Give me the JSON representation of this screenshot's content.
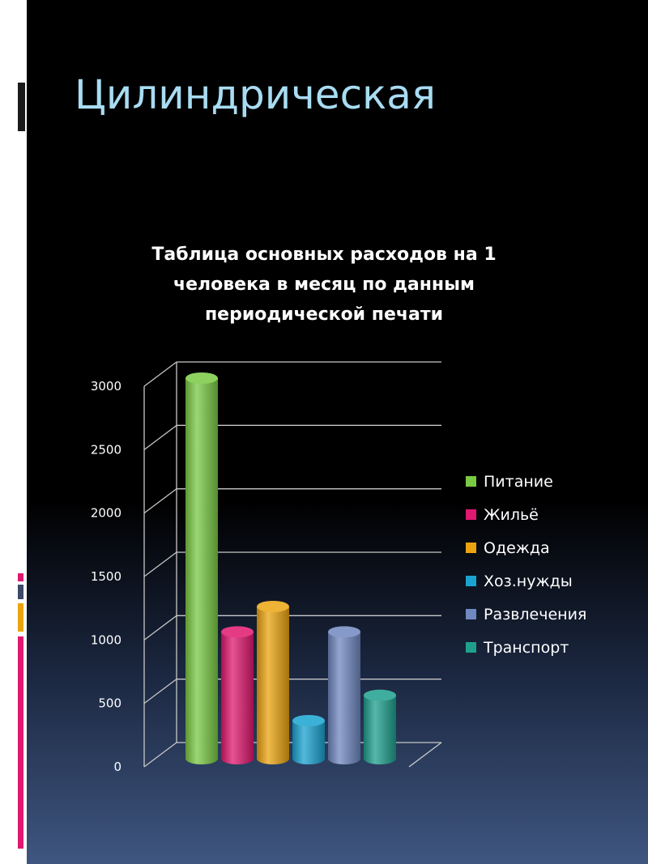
{
  "slide": {
    "title": "Цилиндрическая"
  },
  "chart_data": {
    "type": "bar",
    "title": "Таблица основных расходов на 1\nчеловека в месяц по данным\nпериодической печати",
    "categories": [
      "Питание",
      "Жильё",
      "Одежда",
      "Хоз.нужды",
      "Развлечения",
      "Транспорт"
    ],
    "values": [
      3000,
      1000,
      1200,
      300,
      1000,
      500
    ],
    "colors": [
      "#7ac943",
      "#e0186f",
      "#eba410",
      "#1aa3d1",
      "#7088c0",
      "#1ea08d"
    ],
    "ylim": [
      0,
      3000
    ],
    "yticks": [
      "0",
      "500",
      "1000",
      "1500",
      "2000",
      "2500",
      "3000"
    ],
    "xlabel": "",
    "ylabel": "",
    "grid": true,
    "legend_position": "right",
    "bar_shape": "cylinder"
  }
}
